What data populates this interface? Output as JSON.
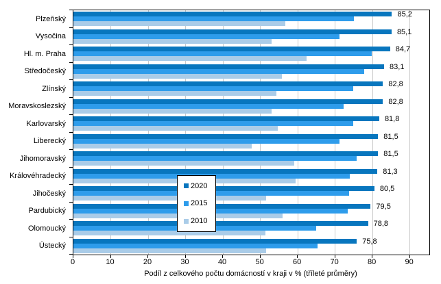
{
  "chart_data": {
    "type": "bar",
    "orientation": "horizontal",
    "title": "",
    "xlabel": "Podíl z celkového počtu domácností v kraji v % (tříleté průměry)",
    "ylabel": "",
    "xlim": [
      0,
      95.2
    ],
    "x_ticks": [
      0,
      10,
      20,
      30,
      40,
      50,
      60,
      70,
      80,
      90
    ],
    "grid": true,
    "legend_position": "center",
    "categories": [
      "Plzeňský",
      "Vysočina",
      "Hl. m. Praha",
      "Středočeský",
      "Zlínský",
      "Moravskoslezský",
      "Karlovarský",
      "Liberecký",
      "Jihomoravský",
      "Královéhradecký",
      "Jihočeský",
      "Pardubický",
      "Olomoucký",
      "Ústecký"
    ],
    "series": [
      {
        "name": "2020",
        "color": "#0876BE",
        "values": [
          85.2,
          85.1,
          84.7,
          83.1,
          82.8,
          82.8,
          81.8,
          81.5,
          81.5,
          81.3,
          80.5,
          79.5,
          78.8,
          75.8
        ]
      },
      {
        "name": "2015",
        "color": "#2E9CEB",
        "values": [
          75.1,
          71.2,
          79.8,
          77.8,
          74.9,
          72.2,
          74.8,
          71.2,
          75.7,
          73.9,
          73.8,
          73.3,
          65.0,
          65.3
        ]
      },
      {
        "name": "2010",
        "color": "#AACCE8",
        "values": [
          56.7,
          53.1,
          62.3,
          55.8,
          54.3,
          53.1,
          54.6,
          47.6,
          59.0,
          59.5,
          51.5,
          55.9,
          51.4,
          51.6
        ]
      }
    ],
    "value_labels": [
      "85,2",
      "85,1",
      "84,7",
      "83,1",
      "82,8",
      "82,8",
      "81,8",
      "81,5",
      "81,5",
      "81,3",
      "80,5",
      "79,5",
      "78,8",
      "75,8"
    ],
    "value_labels_series": "2020"
  },
  "colors": {
    "gridline": "#c9c9c9",
    "axis_frame": "#000000",
    "background": "#ffffff"
  }
}
